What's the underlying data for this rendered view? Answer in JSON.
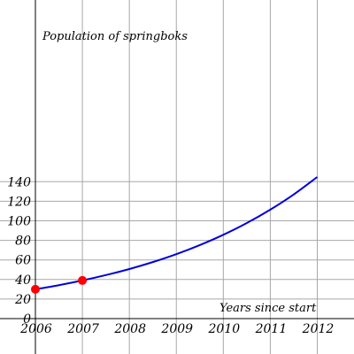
{
  "chart_data": {
    "type": "line",
    "title": "",
    "xlabel": "Years since start",
    "ylabel": "Population of springboks",
    "xlim": [
      2006,
      2012
    ],
    "ylim": [
      0,
      150
    ],
    "x_ticks": [
      2006,
      2007,
      2008,
      2009,
      2010,
      2011,
      2012
    ],
    "y_ticks": [
      0,
      20,
      40,
      60,
      80,
      100,
      120,
      140
    ],
    "x_tick_labels": [
      "2006",
      "2007",
      "2008",
      "2009",
      "2010",
      "2011",
      "2012"
    ],
    "y_tick_labels": [
      "0",
      "20",
      "40",
      "60",
      "80",
      "100",
      "120",
      "140"
    ],
    "grid": true,
    "series": [
      {
        "color": "#0000dd",
        "x": [
          2006,
          2006.5,
          2007,
          2007.5,
          2008,
          2008.5,
          2009,
          2009.5,
          2010,
          2010.5,
          2011,
          2011.5,
          2012
        ],
        "y": [
          30,
          34.2,
          39,
          44.5,
          50.7,
          57.8,
          65.9,
          75.2,
          85.7,
          97.7,
          111.4,
          127.0,
          144.8
        ]
      }
    ],
    "points": [
      {
        "x": 2006,
        "y": 30,
        "color": "#ff0000"
      },
      {
        "x": 2007,
        "y": 39,
        "color": "#ff0000"
      }
    ]
  }
}
